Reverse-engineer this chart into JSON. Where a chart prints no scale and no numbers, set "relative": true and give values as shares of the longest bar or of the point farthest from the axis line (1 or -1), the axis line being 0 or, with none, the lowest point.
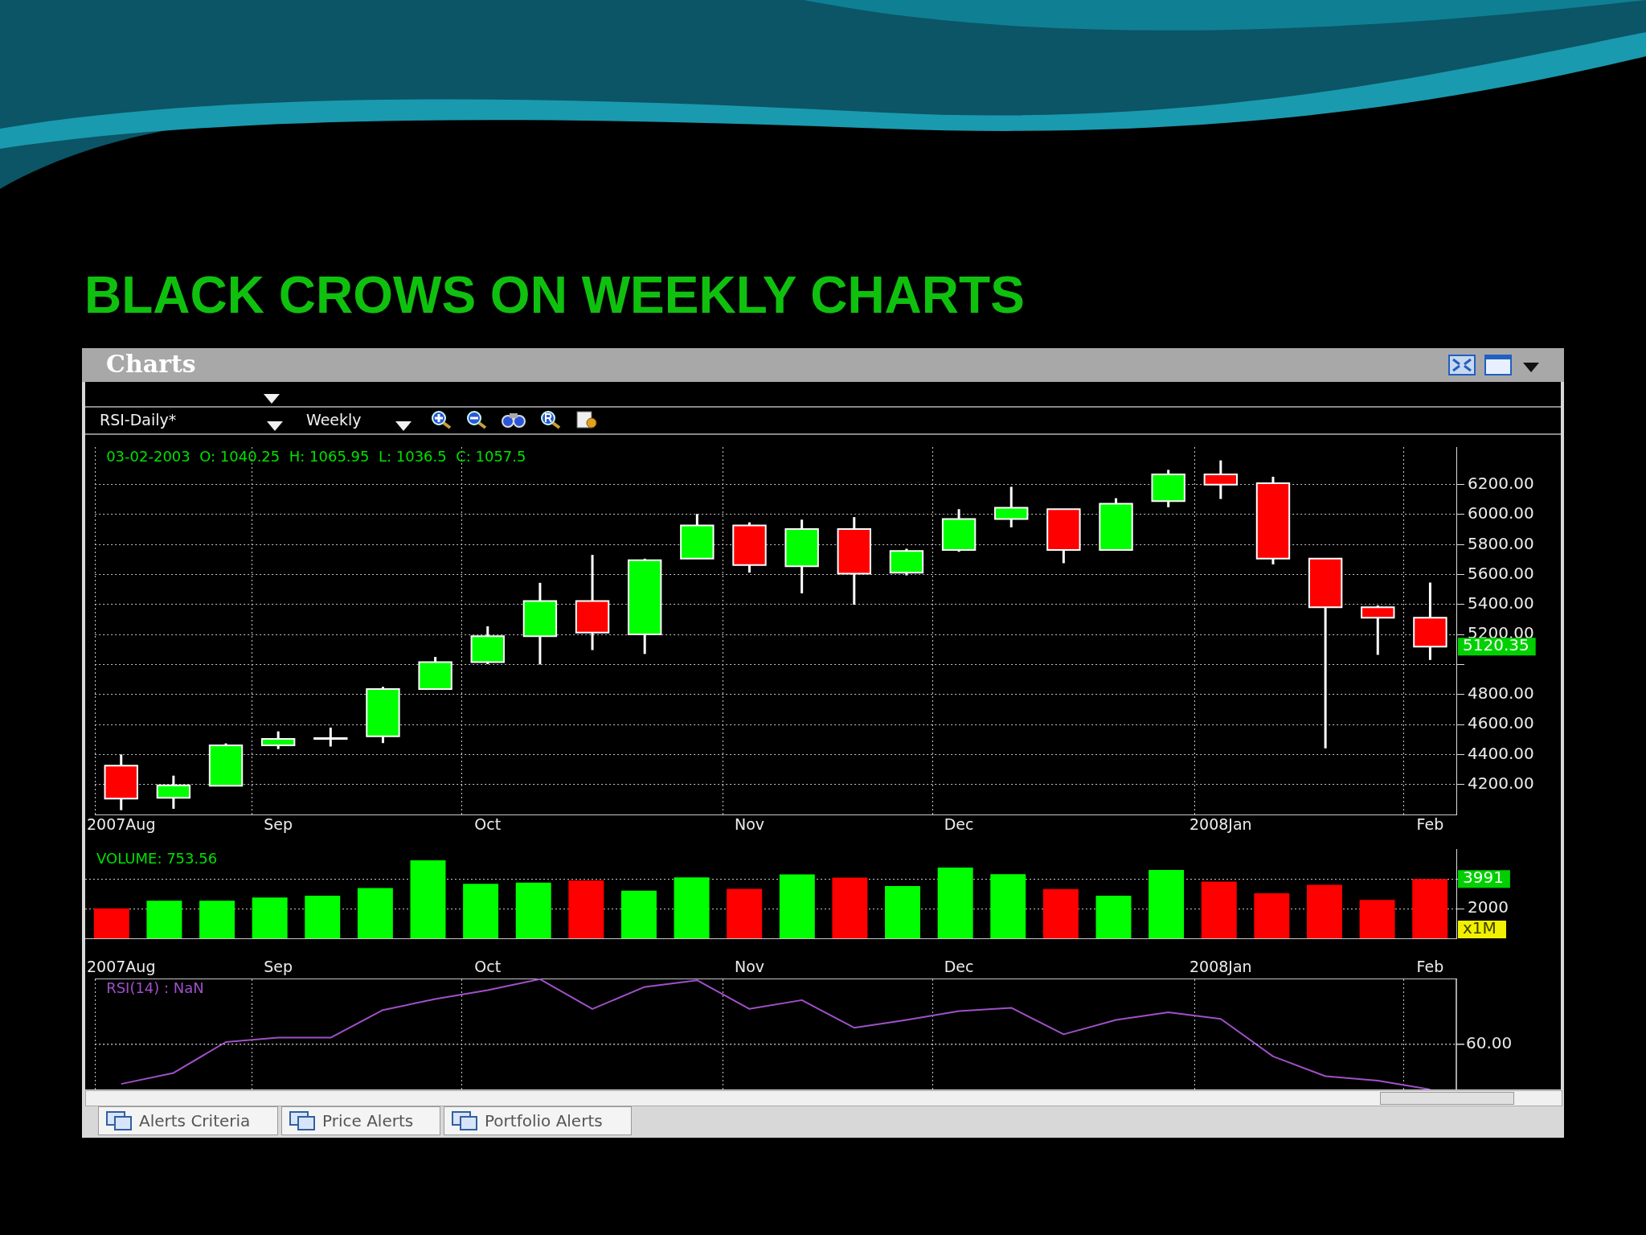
{
  "chart_data": [
    {
      "type": "other",
      "title": "BLACK CROWS ON WEEKLY CHARTS",
      "annotations": [
        "Charts",
        "RSI-Daily*",
        "Weekly"
      ]
    },
    {
      "type": "candlestick",
      "categories": [
        "2007Aug",
        null,
        null,
        "Sep",
        null,
        null,
        null,
        "Oct",
        null,
        null,
        null,
        null,
        "Nov",
        null,
        null,
        null,
        "Dec",
        null,
        null,
        null,
        null,
        "2008Jan",
        null,
        null,
        null,
        "Feb"
      ],
      "ohlc": [
        [
          4326,
          4401,
          4030,
          4107
        ],
        [
          4112,
          4260,
          4039,
          4195
        ],
        [
          4192,
          4475,
          4192,
          4462
        ],
        [
          4462,
          4555,
          4437,
          4505
        ],
        [
          4508,
          4580,
          4454,
          4510
        ],
        [
          4522,
          4852,
          4477,
          4837
        ],
        [
          4837,
          5051,
          4837,
          5016
        ],
        [
          5016,
          5255,
          5003,
          5190
        ],
        [
          5190,
          5545,
          5001,
          5424
        ],
        [
          5424,
          5731,
          5097,
          5213
        ],
        [
          5202,
          5706,
          5071,
          5696
        ],
        [
          5706,
          6004,
          5706,
          5928
        ],
        [
          5928,
          5948,
          5613,
          5663
        ],
        [
          5656,
          5966,
          5475,
          5903
        ],
        [
          5903,
          5983,
          5399,
          5606
        ],
        [
          5613,
          5772,
          5595,
          5757
        ],
        [
          5764,
          6036,
          5752,
          5971
        ],
        [
          5971,
          6185,
          5915,
          6046
        ],
        [
          6036,
          6036,
          5676,
          5764
        ],
        [
          5764,
          6109,
          5764,
          6072
        ],
        [
          6089,
          6298,
          6049,
          6268
        ],
        [
          6268,
          6361,
          6104,
          6200
        ],
        [
          6209,
          6252,
          5668,
          5706
        ],
        [
          5706,
          5706,
          4442,
          5382
        ],
        [
          5382,
          5394,
          5065,
          5313
        ],
        [
          5313,
          5547,
          5031,
          5120.35
        ]
      ],
      "colors": [
        "#ff0000",
        "#00ff00",
        "#00ff00",
        "#00ff00",
        "#ffffff",
        "#00ff00",
        "#00ff00",
        "#00ff00",
        "#00ff00",
        "#ff0000",
        "#00ff00",
        "#00ff00",
        "#ff0000",
        "#00ff00",
        "#ff0000",
        "#00ff00",
        "#00ff00",
        "#00ff00",
        "#ff0000",
        "#00ff00",
        "#00ff00",
        "#ff0000",
        "#ff0000",
        "#ff0000",
        "#ff0000",
        "#ff0000"
      ],
      "ylim": [
        4000,
        6450
      ],
      "yticks": [
        {
          "value": 4200,
          "label": "4200.00"
        },
        {
          "value": 4400,
          "label": "4400.00"
        },
        {
          "value": 4600,
          "label": "4600.00"
        },
        {
          "value": 4800,
          "label": "4800.00"
        },
        {
          "value": 5000,
          "label": null
        },
        {
          "value": 5200,
          "label": "5200.00"
        },
        {
          "value": 5400,
          "label": "5400.00"
        },
        {
          "value": 5600,
          "label": "5600.00"
        },
        {
          "value": 5800,
          "label": "5800.00"
        },
        {
          "value": 6000,
          "label": "6000.00"
        },
        {
          "value": 6200,
          "label": "6200.00"
        }
      ],
      "grid": true,
      "annotations": [
        "03-02-2003  O: 1040.25  H: 1065.95  L: 1036.5  C: 1057.5",
        "5120.35"
      ]
    },
    {
      "type": "bar",
      "categories": [
        null,
        null,
        null,
        null,
        null,
        null,
        null,
        null,
        null,
        null,
        null,
        null,
        null,
        null,
        null,
        null,
        null,
        null,
        null,
        null,
        null,
        null,
        null,
        null,
        null,
        null
      ],
      "values": [
        2020,
        2530,
        2530,
        2740,
        2870,
        3380,
        5250,
        3660,
        3740,
        3890,
        3200,
        4100,
        3330,
        4300,
        4080,
        3520,
        4760,
        4310,
        3310,
        2870,
        4600,
        3810,
        3030,
        3600,
        2580,
        3991
      ],
      "colors": [
        "#ff0000",
        "#00ff00",
        "#00ff00",
        "#00ff00",
        "#00ff00",
        "#00ff00",
        "#00ff00",
        "#00ff00",
        "#00ff00",
        "#ff0000",
        "#00ff00",
        "#00ff00",
        "#ff0000",
        "#00ff00",
        "#ff0000",
        "#00ff00",
        "#00ff00",
        "#00ff00",
        "#ff0000",
        "#00ff00",
        "#00ff00",
        "#ff0000",
        "#ff0000",
        "#ff0000",
        "#ff0000",
        "#ff0000"
      ],
      "ylim": [
        0,
        6000
      ],
      "yticks": [
        2000,
        {
          "value": 4000,
          "label": null
        }
      ],
      "grid": "y",
      "tick_labels": "y",
      "annotations": [
        "VOLUME: 753.56",
        "3991",
        "x1M"
      ]
    },
    {
      "type": "line",
      "categories": [
        "2007Aug",
        null,
        null,
        "Sep",
        null,
        null,
        null,
        "Oct",
        null,
        null,
        null,
        null,
        "Nov",
        null,
        null,
        null,
        "Dec",
        null,
        null,
        null,
        null,
        "2008Jan",
        null,
        null,
        null,
        "Feb"
      ],
      "series": [
        {
          "color": "#a050c8",
          "values": [
            0.05,
            0.15,
            0.43,
            0.47,
            0.47,
            0.72,
            0.82,
            0.9,
            1,
            0.73,
            0.93,
            0.99,
            0.73,
            0.81,
            0.56,
            0.63,
            0.71,
            0.74,
            0.5,
            0.63,
            0.7,
            0.64,
            0.3,
            0.12,
            0.08,
            0
          ]
        }
      ],
      "relative": true,
      "grid": "x",
      "tick_labels": "x",
      "ref_lines": [
        {
          "axis": "y",
          "value": 0.41
        }
      ],
      "annotations": [
        "RSI(14) : NaN",
        "60.00"
      ]
    },
    {
      "type": "other",
      "annotations": [
        "Alerts Criteria",
        "Price Alerts",
        "Portfolio Alerts"
      ]
    }
  ]
}
